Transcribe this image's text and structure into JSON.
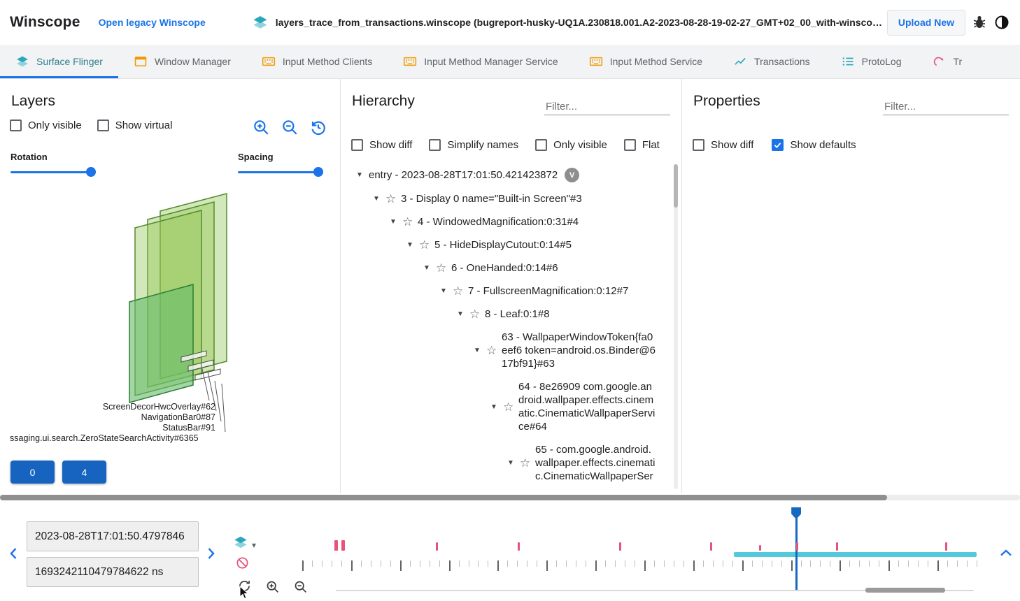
{
  "header": {
    "app_title": "Winscope",
    "legacy_link": "Open legacy Winscope",
    "trace_file": "layers_trace_from_transactions.winscope (bugreport-husky-UQ1A.230818.001.A2-2023-08-28-19-02-27_GMT+02_00_with-winscope_REDACTED.zip)",
    "upload_button": "Upload New"
  },
  "tabs": [
    {
      "label": "Surface Flinger",
      "icon": "layers-icon",
      "active": true
    },
    {
      "label": "Window Manager",
      "icon": "window-icon",
      "active": false
    },
    {
      "label": "Input Method Clients",
      "icon": "keyboard-icon",
      "active": false
    },
    {
      "label": "Input Method Manager Service",
      "icon": "keyboard-icon",
      "active": false
    },
    {
      "label": "Input Method Service",
      "icon": "keyboard-icon",
      "active": false
    },
    {
      "label": "Transactions",
      "icon": "chart-icon",
      "active": false
    },
    {
      "label": "ProtoLog",
      "icon": "list-icon",
      "active": false
    },
    {
      "label": "Tr",
      "icon": "transition-icon",
      "active": false
    }
  ],
  "layers_panel": {
    "title": "Layers",
    "checkboxes": [
      {
        "label": "Only visible",
        "checked": false
      },
      {
        "label": "Show virtual",
        "checked": false
      }
    ],
    "rotation_label": "Rotation",
    "spacing_label": "Spacing",
    "rotation_value_pct": 100,
    "spacing_value_pct": 100,
    "layer_labels": [
      "ScreenDecorHwcOverlay#62",
      "NavigationBar0#87",
      "StatusBar#91",
      "ssaging.ui.search.ZeroStateSearchActivity#6365"
    ],
    "nav_buttons": [
      "0",
      "4"
    ]
  },
  "hierarchy_panel": {
    "title": "Hierarchy",
    "filter_placeholder": "Filter...",
    "checkboxes": [
      {
        "label": "Show diff",
        "checked": false
      },
      {
        "label": "Simplify names",
        "checked": false
      },
      {
        "label": "Only visible",
        "checked": false
      },
      {
        "label": "Flat",
        "checked": false
      }
    ],
    "entry_badge": "V",
    "tree": [
      {
        "level": 0,
        "label": "entry - 2023-08-28T17:01:50.421423872"
      },
      {
        "level": 1,
        "label": "3 - Display 0 name=\"Built-in Screen\"#3"
      },
      {
        "level": 2,
        "label": "4 - WindowedMagnification:0:31#4"
      },
      {
        "level": 3,
        "label": "5 - HideDisplayCutout:0:14#5"
      },
      {
        "level": 4,
        "label": "6 - OneHanded:0:14#6"
      },
      {
        "level": 5,
        "label": "7 - FullscreenMagnification:0:12#7"
      },
      {
        "level": 6,
        "label": "8 - Leaf:0:1#8"
      },
      {
        "level": 7,
        "label": "63 - WallpaperWindowToken{fa0eef6 token=android.os.Binder@617bf91}#63"
      },
      {
        "level": 8,
        "label": "64 - 8e26909 com.google.android.wallpaper.effects.cinematic.CinematicWallpaperService#64"
      },
      {
        "level": 9,
        "label": "65 - com.google.android.wallpaper.effects.cinematic.CinematicWallpaperSer"
      }
    ]
  },
  "properties_panel": {
    "title": "Properties",
    "filter_placeholder": "Filter...",
    "checkboxes": [
      {
        "label": "Show diff",
        "checked": false
      },
      {
        "label": "Show defaults",
        "checked": true
      }
    ]
  },
  "timeline": {
    "time_human": "2023-08-28T17:01:50.4797846",
    "time_ns": "1693242110479784622 ns",
    "cursor_pct": 73.2,
    "selection": {
      "start_pct": 64.0,
      "end_pct": 100.0
    },
    "transaction_marks": [
      {
        "pct": 4.8,
        "w": 5,
        "h": 15
      },
      {
        "pct": 5.8,
        "w": 5,
        "h": 15
      },
      {
        "pct": 19.8,
        "w": 3,
        "h": 12
      },
      {
        "pct": 31.9,
        "w": 3,
        "h": 12
      },
      {
        "pct": 47.0,
        "w": 3,
        "h": 12
      },
      {
        "pct": 60.5,
        "w": 3,
        "h": 12
      },
      {
        "pct": 67.7,
        "w": 3,
        "h": 8
      },
      {
        "pct": 73.2,
        "w": 3,
        "h": 12
      },
      {
        "pct": 79.2,
        "w": 3,
        "h": 12
      },
      {
        "pct": 95.3,
        "w": 3,
        "h": 12
      }
    ],
    "ruler": {
      "count": 70,
      "major_every": 5
    }
  },
  "glyphs": {
    "expand_arrow": "▼",
    "star": "☆",
    "caret": "▾"
  },
  "colors": {
    "accent_blue": "#1a73e8",
    "button_blue": "#1764c0",
    "teal": "#2ba7bb",
    "orange": "#f29900",
    "pink": "#e8537a",
    "selection_teal": "#55c9dc",
    "layer_green": "#8bc34a"
  }
}
